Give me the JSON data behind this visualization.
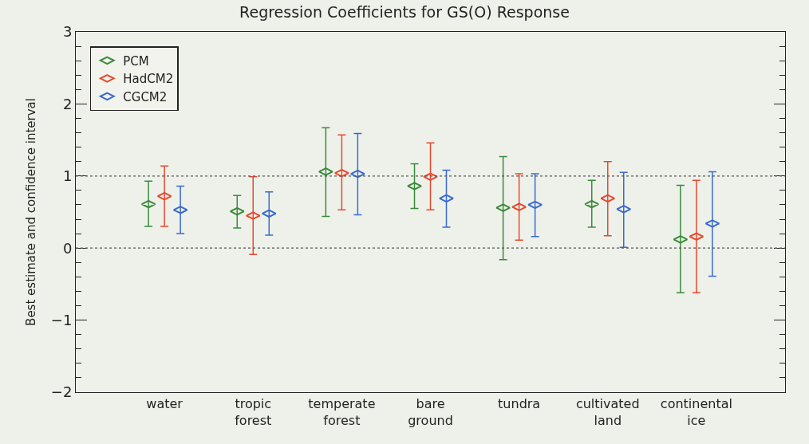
{
  "chart_data": {
    "type": "scatter",
    "title": "Regression Coefficients for GS(O) Response",
    "ylabel": "Best estimate and confidence interval",
    "categories": [
      "water",
      "tropic\nforest",
      "temperate\nforest",
      "bare\nground",
      "tundra",
      "cultivated\nland",
      "continental\nice"
    ],
    "series": [
      {
        "name": "PCM",
        "color": "#3a8a3a",
        "values": [
          0.61,
          0.51,
          1.06,
          0.86,
          0.56,
          0.61,
          0.12
        ],
        "errors": [
          [
            0.3,
            0.93
          ],
          [
            0.28,
            0.73
          ],
          [
            0.44,
            1.67
          ],
          [
            0.55,
            1.17
          ],
          [
            -0.16,
            1.27
          ],
          [
            0.29,
            0.94
          ],
          [
            -0.62,
            0.87
          ]
        ]
      },
      {
        "name": "HadCM2",
        "color": "#e8482e",
        "values": [
          0.72,
          0.45,
          1.04,
          0.99,
          0.57,
          0.69,
          0.16
        ],
        "errors": [
          [
            0.3,
            1.14
          ],
          [
            -0.09,
            0.99
          ],
          [
            0.53,
            1.57
          ],
          [
            0.53,
            1.46
          ],
          [
            0.11,
            1.03
          ],
          [
            0.17,
            1.2
          ],
          [
            -0.62,
            0.94
          ]
        ]
      },
      {
        "name": "CGCM2",
        "color": "#3a6ad0",
        "values": [
          0.53,
          0.48,
          1.03,
          0.69,
          0.6,
          0.54,
          0.34
        ],
        "errors": [
          [
            0.2,
            0.86
          ],
          [
            0.18,
            0.78
          ],
          [
            0.46,
            1.59
          ],
          [
            0.29,
            1.08
          ],
          [
            0.16,
            1.03
          ],
          [
            0.01,
            1.05
          ],
          [
            -0.39,
            1.06
          ]
        ]
      }
    ],
    "ylim": [
      -2,
      3
    ],
    "yticks": [
      -2,
      -1,
      0,
      1,
      2,
      3
    ],
    "grid": false,
    "legend": "top left",
    "marker": "diamond",
    "ref_lines": [
      {
        "axis": "y",
        "value": 0,
        "color": "#555555",
        "line_style": "dotted"
      },
      {
        "axis": "y",
        "value": 1,
        "color": "#555555",
        "line_style": "dotted"
      }
    ]
  }
}
